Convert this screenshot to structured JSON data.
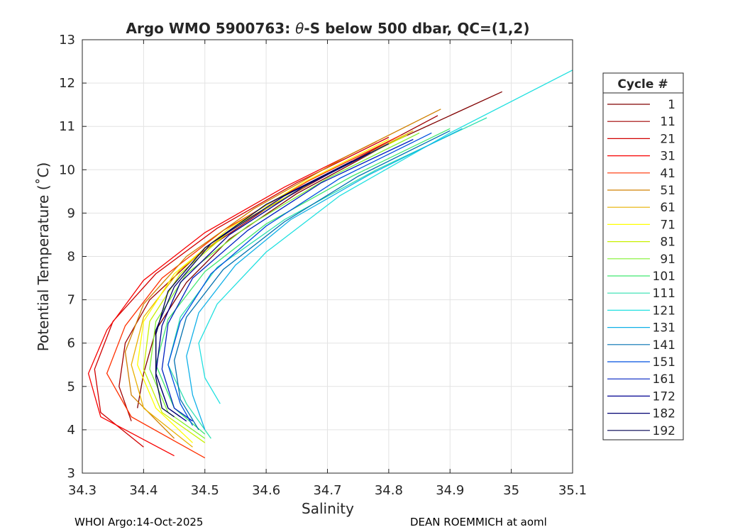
{
  "chart_data": {
    "type": "line",
    "title_prefix": "Argo WMO 5900763: ",
    "title_symbol": "θ",
    "title_suffix": "-S below 500 dbar,  QC=(1,2)",
    "xlabel": "Salinity",
    "ylabel": "Potential Temperature (˚C)",
    "xlim": [
      34.3,
      35.1
    ],
    "ylim": [
      3,
      13
    ],
    "xticks": [
      "34.3",
      "34.4",
      "34.5",
      "34.6",
      "34.7",
      "34.8",
      "34.9",
      "35",
      "35.1"
    ],
    "yticks": [
      "3",
      "4",
      "5",
      "6",
      "7",
      "8",
      "9",
      "10",
      "11",
      "12",
      "13"
    ],
    "grid": true,
    "legend": {
      "title": "Cycle #",
      "position": "right-outside",
      "entries": [
        {
          "label": "1",
          "color": "#800000"
        },
        {
          "label": "11",
          "color": "#a00000"
        },
        {
          "label": "21",
          "color": "#d00000"
        },
        {
          "label": "31",
          "color": "#f80000"
        },
        {
          "label": "41",
          "color": "#ff3000"
        },
        {
          "label": "51",
          "color": "#d08000"
        },
        {
          "label": "61",
          "color": "#e8b000"
        },
        {
          "label": "71",
          "color": "#ffff00"
        },
        {
          "label": "81",
          "color": "#c8f000"
        },
        {
          "label": "91",
          "color": "#80f030"
        },
        {
          "label": "101",
          "color": "#40e870"
        },
        {
          "label": "111",
          "color": "#30e0b0"
        },
        {
          "label": "121",
          "color": "#20e0e0"
        },
        {
          "label": "131",
          "color": "#10b0e8"
        },
        {
          "label": "141",
          "color": "#0070b0"
        },
        {
          "label": "151",
          "color": "#0050e0"
        },
        {
          "label": "161",
          "color": "#0020c0"
        },
        {
          "label": "172",
          "color": "#000090"
        },
        {
          "label": "182",
          "color": "#000070"
        },
        {
          "label": "192",
          "color": "#000050"
        }
      ]
    },
    "profiles": [
      {
        "cycle": "1",
        "color": "#800000",
        "x": [
          34.985,
          34.8,
          34.65,
          34.54,
          34.47,
          34.42,
          34.4,
          34.39
        ],
        "y": [
          11.8,
          10.6,
          9.45,
          8.4,
          7.4,
          6.3,
          5.3,
          4.5
        ]
      },
      {
        "cycle": "11",
        "color": "#a00000",
        "x": [
          34.88,
          34.74,
          34.6,
          34.49,
          34.41,
          34.37,
          34.36,
          34.38
        ],
        "y": [
          11.25,
          10.2,
          9.1,
          8.05,
          7.0,
          6.0,
          5.0,
          4.2
        ]
      },
      {
        "cycle": "21",
        "color": "#d00000",
        "x": [
          34.8,
          34.65,
          34.52,
          34.42,
          34.35,
          34.32,
          34.33,
          34.4
        ],
        "y": [
          10.75,
          9.7,
          8.65,
          7.6,
          6.5,
          5.4,
          4.4,
          3.6
        ]
      },
      {
        "cycle": "31",
        "color": "#f80000",
        "x": [
          34.78,
          34.63,
          34.5,
          34.4,
          34.34,
          34.31,
          34.33,
          34.45
        ],
        "y": [
          10.65,
          9.6,
          8.55,
          7.45,
          6.3,
          5.3,
          4.3,
          3.4
        ]
      },
      {
        "cycle": "41",
        "color": "#ff3000",
        "x": [
          34.82,
          34.67,
          34.53,
          34.43,
          34.37,
          34.34,
          34.38,
          34.5
        ],
        "y": [
          10.8,
          9.75,
          8.6,
          7.5,
          6.4,
          5.3,
          4.3,
          3.35
        ]
      },
      {
        "cycle": "51",
        "color": "#d08000",
        "x": [
          34.885,
          34.73,
          34.58,
          34.47,
          34.4,
          34.37,
          34.38,
          34.45
        ],
        "y": [
          11.4,
          10.3,
          9.1,
          8.0,
          6.9,
          5.8,
          4.8,
          3.8
        ]
      },
      {
        "cycle": "61",
        "color": "#e8b000",
        "x": [
          34.84,
          34.7,
          34.56,
          34.46,
          34.4,
          34.38,
          34.4,
          34.48
        ],
        "y": [
          10.9,
          9.9,
          8.8,
          7.7,
          6.6,
          5.5,
          4.5,
          3.6
        ]
      },
      {
        "cycle": "71",
        "color": "#ffff00",
        "x": [
          34.8,
          34.66,
          34.54,
          34.45,
          34.4,
          34.39,
          34.42,
          34.48
        ],
        "y": [
          10.7,
          9.7,
          8.65,
          7.6,
          6.5,
          5.5,
          4.5,
          3.7
        ]
      },
      {
        "cycle": "81",
        "color": "#c8f000",
        "x": [
          34.83,
          34.68,
          34.55,
          34.46,
          34.41,
          34.4,
          34.43,
          34.5
        ],
        "y": [
          10.8,
          9.75,
          8.7,
          7.6,
          6.5,
          5.4,
          4.4,
          3.7
        ]
      },
      {
        "cycle": "91",
        "color": "#80f030",
        "x": [
          34.85,
          34.7,
          34.57,
          34.47,
          34.42,
          34.41,
          34.44,
          34.5
        ],
        "y": [
          10.85,
          9.8,
          8.7,
          7.6,
          6.5,
          5.4,
          4.4,
          3.8
        ]
      },
      {
        "cycle": "101",
        "color": "#40e870",
        "x": [
          34.9,
          34.74,
          34.6,
          34.5,
          34.44,
          34.42,
          34.45,
          34.5
        ],
        "y": [
          10.95,
          9.85,
          8.75,
          7.65,
          6.55,
          5.5,
          4.5,
          3.9
        ]
      },
      {
        "cycle": "111",
        "color": "#30e0b0",
        "x": [
          34.96,
          34.78,
          34.63,
          34.52,
          34.46,
          34.44,
          34.47,
          34.51
        ],
        "y": [
          11.2,
          10.0,
          8.85,
          7.75,
          6.6,
          5.5,
          4.6,
          3.8
        ]
      },
      {
        "cycle": "121",
        "color": "#20e0e0",
        "x": [
          35.1,
          34.9,
          34.72,
          34.6,
          34.52,
          34.49,
          34.5,
          34.525
        ],
        "y": [
          12.3,
          10.85,
          9.4,
          8.1,
          6.9,
          6.0,
          5.2,
          4.6
        ]
      },
      {
        "cycle": "131",
        "color": "#10b0e8",
        "x": [
          34.92,
          34.77,
          34.64,
          34.55,
          34.49,
          34.47,
          34.48,
          34.5
        ],
        "y": [
          10.95,
          9.9,
          8.85,
          7.8,
          6.7,
          5.7,
          4.8,
          4.0
        ]
      },
      {
        "cycle": "141",
        "color": "#0070b0",
        "x": [
          34.9,
          34.75,
          34.63,
          34.53,
          34.47,
          34.45,
          34.46,
          34.49
        ],
        "y": [
          10.9,
          9.85,
          8.8,
          7.7,
          6.6,
          5.6,
          4.7,
          4.0
        ]
      },
      {
        "cycle": "151",
        "color": "#0050e0",
        "x": [
          34.87,
          34.72,
          34.6,
          34.51,
          34.46,
          34.44,
          34.46,
          34.48
        ],
        "y": [
          10.85,
          9.8,
          8.7,
          7.6,
          6.5,
          5.5,
          4.6,
          4.1
        ]
      },
      {
        "cycle": "161",
        "color": "#0020c0",
        "x": [
          34.84,
          34.69,
          34.57,
          34.48,
          34.44,
          34.43,
          34.45,
          34.48
        ],
        "y": [
          10.7,
          9.7,
          8.6,
          7.5,
          6.45,
          5.4,
          4.5,
          4.2
        ]
      },
      {
        "cycle": "172",
        "color": "#000090",
        "x": [
          34.8,
          34.66,
          34.54,
          34.46,
          34.43,
          34.42,
          34.44,
          34.47
        ],
        "y": [
          10.6,
          9.6,
          8.5,
          7.4,
          6.4,
          5.3,
          4.5,
          4.2
        ]
      },
      {
        "cycle": "182",
        "color": "#000070",
        "x": [
          34.77,
          34.63,
          34.51,
          34.45,
          34.42,
          34.42,
          34.44,
          34.46
        ],
        "y": [
          10.4,
          9.4,
          8.3,
          7.3,
          6.3,
          5.3,
          4.5,
          4.3
        ]
      },
      {
        "cycle": "192",
        "color": "#000050",
        "x": [
          34.74,
          34.6,
          34.5,
          34.44,
          34.42,
          34.42,
          34.43,
          34.45
        ],
        "y": [
          10.2,
          9.2,
          8.2,
          7.2,
          6.2,
          5.2,
          4.5,
          4.3
        ]
      }
    ]
  },
  "footer": {
    "left": "WHOI Argo:14-Oct-2025",
    "right": "DEAN ROEMMICH at aoml"
  }
}
